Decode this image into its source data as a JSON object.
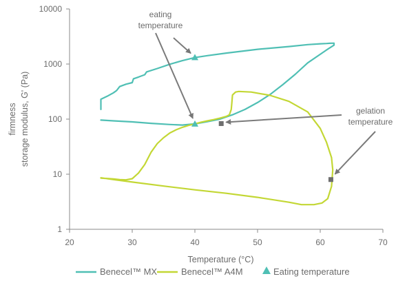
{
  "chart_data": {
    "type": "line",
    "x_axis": {
      "label": "Temperature (°C)",
      "range": [
        20,
        70
      ],
      "ticks": [
        20,
        30,
        40,
        50,
        60,
        70
      ]
    },
    "y_axis": {
      "label_line1": "firmness",
      "label_line2": "storage modulus, G' (Pa)",
      "scale": "log",
      "range": [
        1,
        10000
      ],
      "ticks": [
        1,
        10,
        100,
        1000,
        10000
      ],
      "tick_labels": [
        "1",
        "10",
        "100",
        "1000",
        "10000"
      ]
    },
    "grid": false,
    "series": [
      {
        "name": "Benecel™ MX",
        "color": "#4fbfb4",
        "points": [
          [
            25,
            150
          ],
          [
            25,
            230
          ],
          [
            26,
            260
          ],
          [
            27,
            300
          ],
          [
            27.5,
            330
          ],
          [
            28,
            390
          ],
          [
            29,
            430
          ],
          [
            30,
            460
          ],
          [
            30.2,
            540
          ],
          [
            31,
            580
          ],
          [
            32,
            640
          ],
          [
            32.3,
            720
          ],
          [
            34,
            830
          ],
          [
            36,
            990
          ],
          [
            38,
            1150
          ],
          [
            40,
            1310
          ],
          [
            42,
            1420
          ],
          [
            45,
            1580
          ],
          [
            50,
            1850
          ],
          [
            55,
            2080
          ],
          [
            58,
            2250
          ],
          [
            60,
            2330
          ],
          [
            61,
            2360
          ],
          [
            61.5,
            2380
          ],
          [
            62.2,
            2390
          ],
          [
            62.2,
            2200
          ],
          [
            61,
            1800
          ],
          [
            58,
            1050
          ],
          [
            56,
            650
          ],
          [
            54,
            420
          ],
          [
            52,
            280
          ],
          [
            50,
            200
          ],
          [
            48,
            150
          ],
          [
            46,
            120
          ],
          [
            44,
            100
          ],
          [
            42,
            90
          ],
          [
            40,
            82
          ],
          [
            38,
            78
          ],
          [
            36,
            80
          ],
          [
            33,
            84
          ],
          [
            30,
            89
          ],
          [
            27,
            93
          ],
          [
            25,
            96
          ]
        ]
      },
      {
        "name": "Benecel™ A4M",
        "color": "#c3d734",
        "points": [
          [
            25,
            8.5
          ],
          [
            27,
            8.2
          ],
          [
            28,
            8.0
          ],
          [
            29,
            7.9
          ],
          [
            30,
            8.3
          ],
          [
            31,
            10.5
          ],
          [
            32,
            15
          ],
          [
            33,
            25
          ],
          [
            34,
            36
          ],
          [
            35,
            46
          ],
          [
            36,
            56
          ],
          [
            37,
            64
          ],
          [
            38,
            71
          ],
          [
            39,
            77
          ],
          [
            40,
            82
          ],
          [
            41,
            88
          ],
          [
            42,
            93
          ],
          [
            43,
            98
          ],
          [
            44,
            104
          ],
          [
            45,
            112
          ],
          [
            45.5,
            120
          ],
          [
            45.8,
            150
          ],
          [
            45.9,
            200
          ],
          [
            46,
            275
          ],
          [
            46.5,
            310
          ],
          [
            47,
            318
          ],
          [
            49,
            310
          ],
          [
            52,
            270
          ],
          [
            55,
            210
          ],
          [
            58,
            135
          ],
          [
            60,
            68
          ],
          [
            61,
            38
          ],
          [
            61.8,
            20
          ],
          [
            62,
            12
          ],
          [
            61.8,
            6
          ],
          [
            61.2,
            3.6
          ],
          [
            60.3,
            3.0
          ],
          [
            59,
            2.8
          ],
          [
            57,
            2.8
          ],
          [
            55,
            3.1
          ],
          [
            50,
            3.8
          ],
          [
            45,
            4.5
          ],
          [
            40,
            5.2
          ],
          [
            35,
            6.1
          ],
          [
            30,
            7.2
          ],
          [
            27,
            8.0
          ],
          [
            25,
            8.6
          ]
        ]
      }
    ],
    "eating_temperature_points": [
      [
        40,
        1320
      ],
      [
        40,
        82
      ]
    ],
    "gelation_temperature_points": [
      [
        44.2,
        83
      ],
      [
        61.7,
        8
      ]
    ],
    "annotations": {
      "eating_line1": "eating",
      "eating_line2": "temperature",
      "gelation_line1": "gelation",
      "gelation_line2": "temperature"
    },
    "legend": {
      "position": "bottom",
      "items": [
        {
          "label": "Benecel™ MX",
          "color": "#4fbfb4",
          "marker": "line"
        },
        {
          "label": "Benecel™ A4M",
          "color": "#c3d734",
          "marker": "line"
        },
        {
          "label": "Eating temperature",
          "color": "#4fbfb4",
          "marker": "triangle"
        }
      ]
    }
  }
}
